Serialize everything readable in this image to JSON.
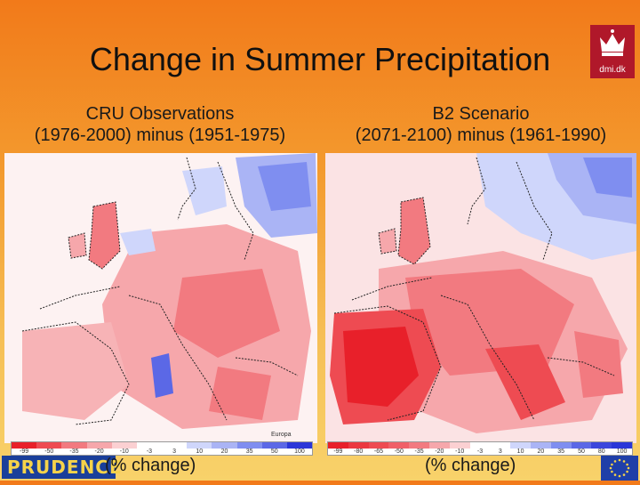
{
  "header": {
    "title": "Change in Summer Precipitation",
    "logo_text": "dmi.dk"
  },
  "panels": [
    {
      "title_line1": "CRU Observations",
      "title_line2": "(1976-2000) minus (1951-1975)",
      "unit_label": "(% change)",
      "credit": "Europa",
      "legend": [
        "-99",
        "-50",
        "-35",
        "-20",
        "-10",
        "-3",
        "3",
        "10",
        "20",
        "35",
        "50",
        "100"
      ]
    },
    {
      "title_line1": "B2 Scenario",
      "title_line2": "(2071-2100) minus (1961-1990)",
      "unit_label": "(% change)",
      "legend": [
        "-99",
        "-80",
        "-65",
        "-50",
        "-35",
        "-20",
        "-10",
        "-3",
        "3",
        "10",
        "20",
        "35",
        "50",
        "80",
        "100"
      ]
    }
  ],
  "footer": {
    "project_logo": "PRUDENCE"
  },
  "colors": {
    "dry_strong": "#e8202a",
    "dry_mid": "#f27a80",
    "dry_light": "#fbd0d2",
    "neutral": "#ffffff",
    "wet_light": "#cfd6fb",
    "wet_mid": "#7f8ef0",
    "wet_strong": "#2a36d8"
  }
}
